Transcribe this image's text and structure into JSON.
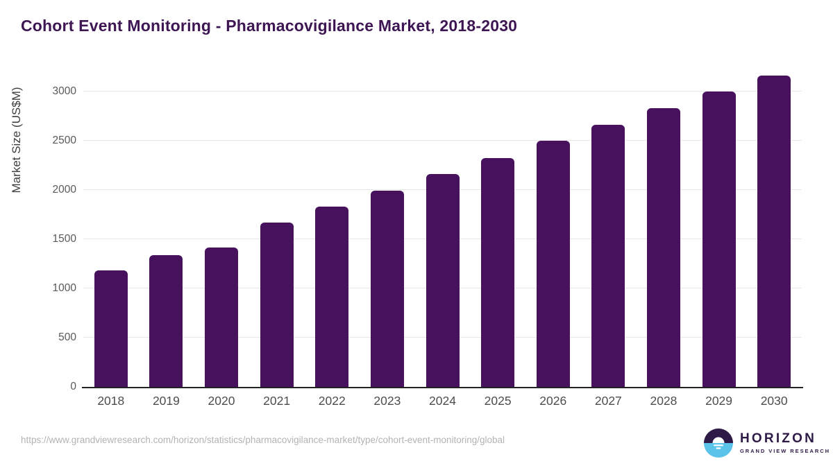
{
  "title": "Cohort Event Monitoring - Pharmacovigilance Market, 2018-2030",
  "colors": {
    "bar": "#47115e",
    "title": "#3d1653",
    "grid": "#e7e7e7",
    "axis_line": "#222222",
    "ytick_label": "#595959",
    "xtick_label": "#4d4d4d",
    "y_axis_title": "#3d3d3d",
    "footer_url": "#b3b3b3",
    "logo_dark": "#2e1a47",
    "logo_blue": "#5bc2ea"
  },
  "chart_data": {
    "type": "bar",
    "title": "Cohort Event Monitoring - Pharmacovigilance Market, 2018-2030",
    "categories": [
      "2018",
      "2019",
      "2020",
      "2021",
      "2022",
      "2023",
      "2024",
      "2025",
      "2026",
      "2027",
      "2028",
      "2029",
      "2030"
    ],
    "values": [
      1185,
      1335,
      1415,
      1670,
      1830,
      1995,
      2160,
      2325,
      2500,
      2665,
      2830,
      3000,
      3165
    ],
    "xlabel": "",
    "ylabel": "Market Size (US$M)",
    "ylim": [
      0,
      3225
    ],
    "yticks": [
      0,
      500,
      1000,
      1500,
      2000,
      2500,
      3000
    ],
    "grid": "horizontal",
    "legend": "none",
    "bar_color": "#47115e"
  },
  "footer": {
    "source_url": "https://www.grandviewresearch.com/horizon/statistics/pharmacovigilance-market/type/cohort-event-monitoring/global",
    "logo_title": "HORIZON",
    "logo_subtitle": "GRAND VIEW RESEARCH"
  }
}
